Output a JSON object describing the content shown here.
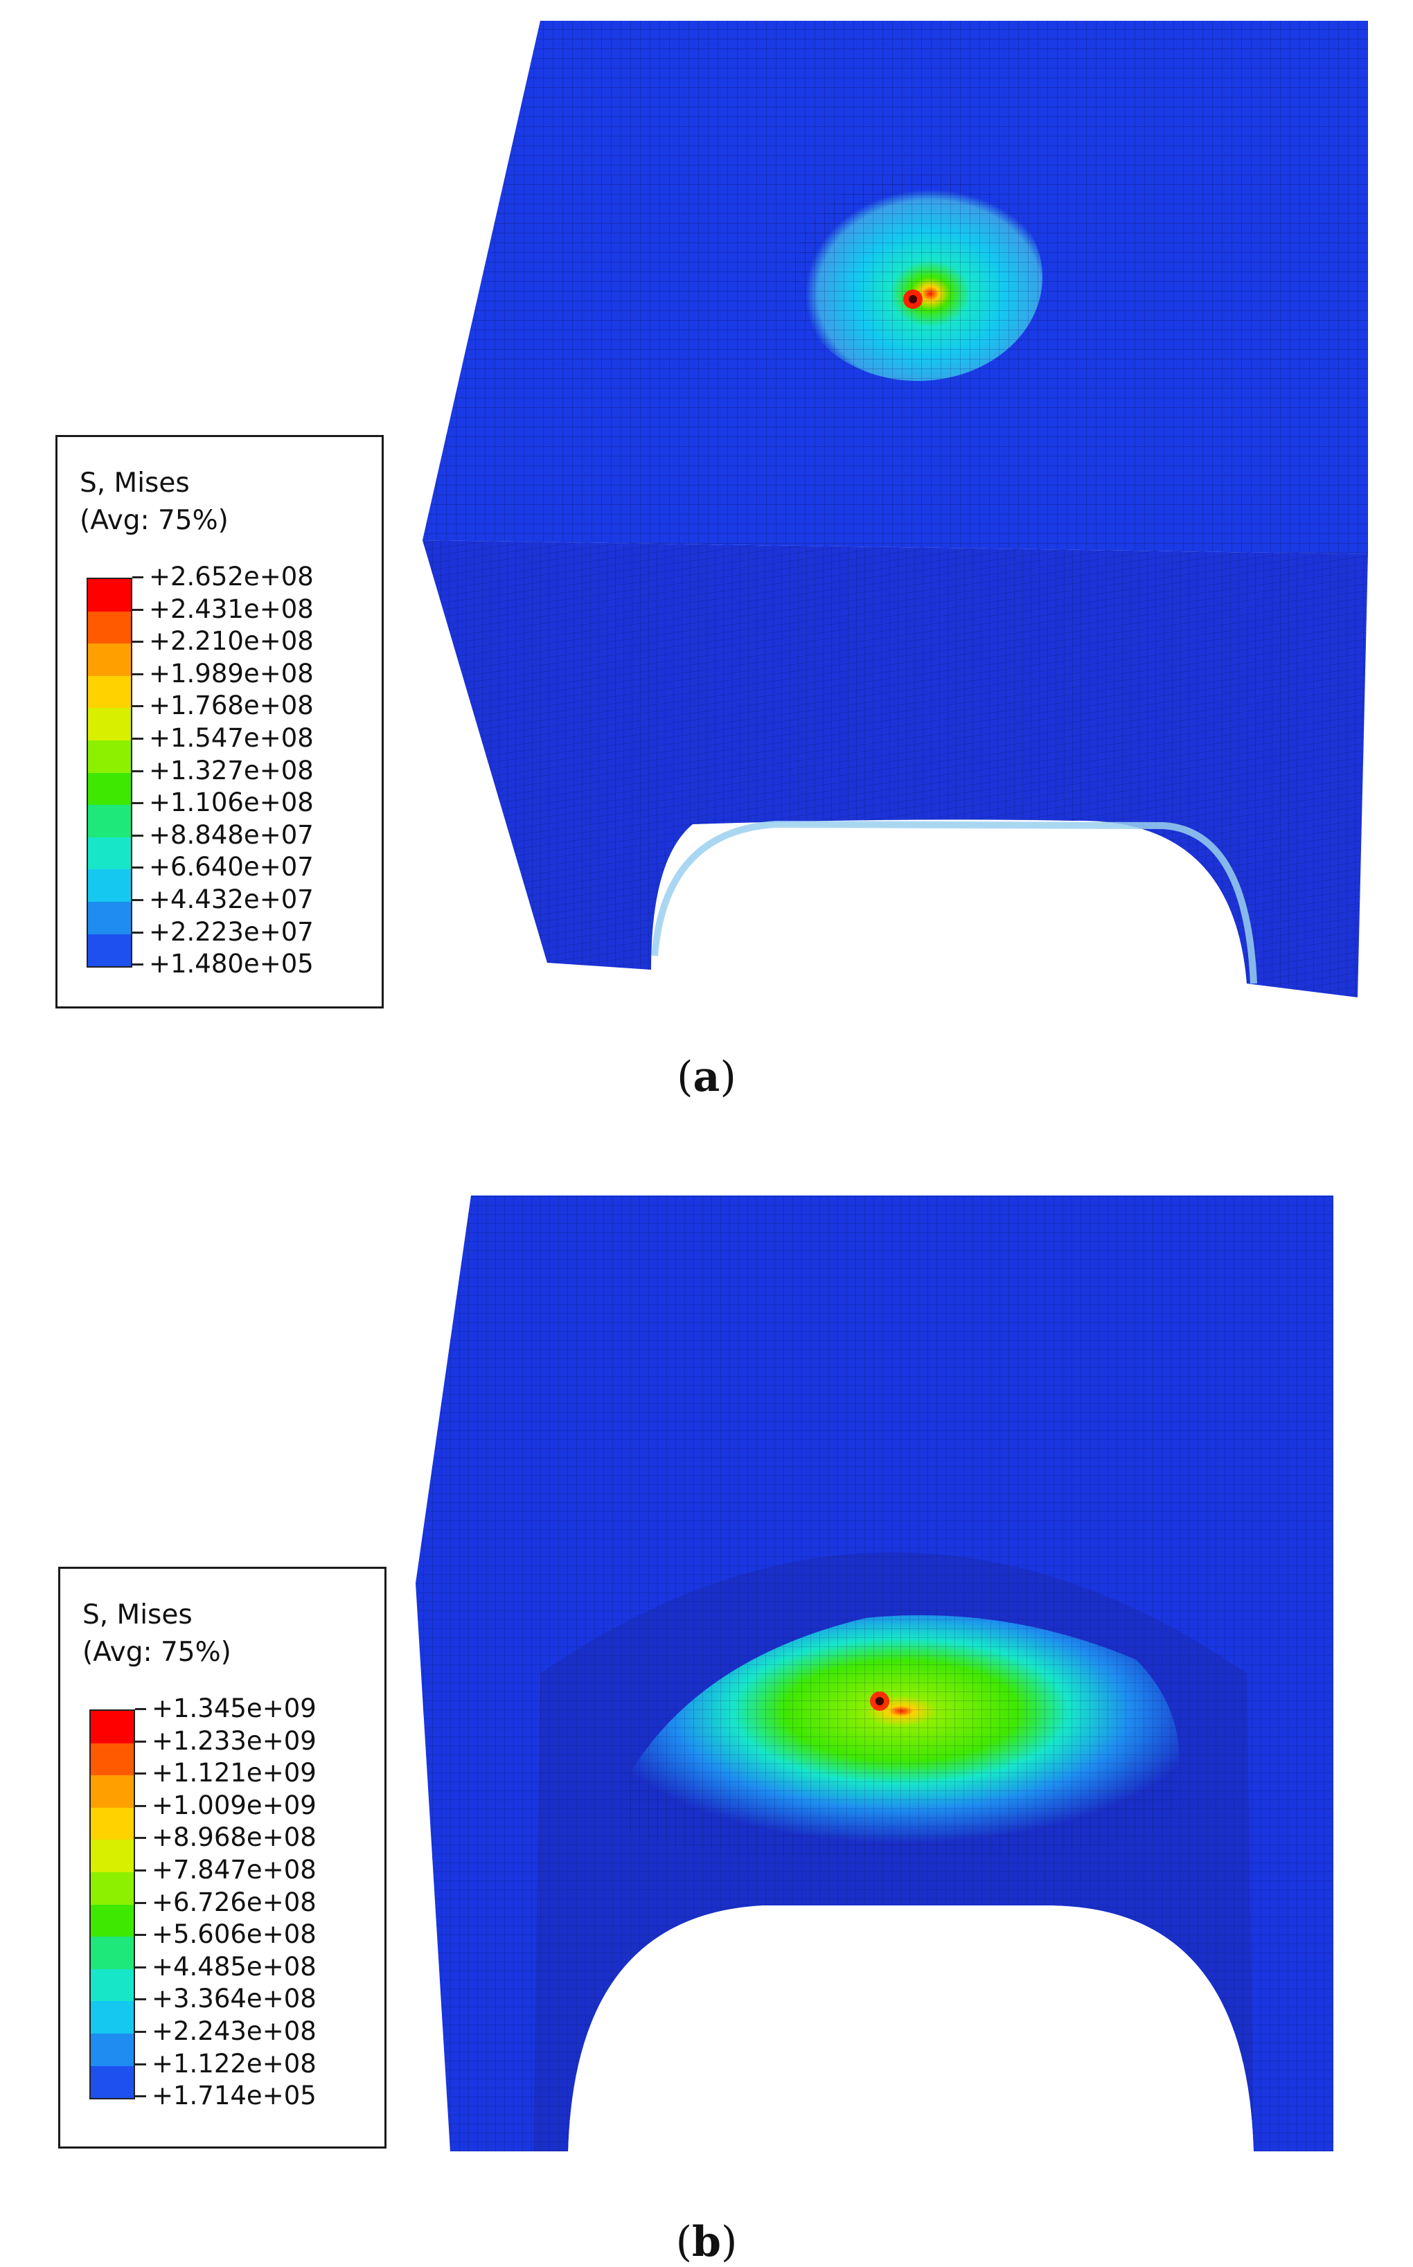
{
  "panels": [
    {
      "id": "a",
      "caption": {
        "open": "(",
        "letter": "a",
        "close": ")"
      },
      "legend": {
        "title": "S, Mises",
        "subtitle": "(Avg: 75%)",
        "values": [
          "+2.652e+08",
          "+2.431e+08",
          "+2.210e+08",
          "+1.989e+08",
          "+1.768e+08",
          "+1.547e+08",
          "+1.327e+08",
          "+1.106e+08",
          "+8.848e+07",
          "+6.640e+07",
          "+4.432e+07",
          "+2.223e+07",
          "+1.480e+05"
        ]
      }
    },
    {
      "id": "b",
      "caption": {
        "open": "(",
        "letter": "b",
        "close": ")"
      },
      "legend": {
        "title": "S, Mises",
        "subtitle": "(Avg: 75%)",
        "values": [
          "+1.345e+09",
          "+1.233e+09",
          "+1.121e+09",
          "+1.009e+09",
          "+8.968e+08",
          "+7.847e+08",
          "+6.726e+08",
          "+5.606e+08",
          "+4.485e+08",
          "+3.364e+08",
          "+2.243e+08",
          "+1.122e+08",
          "+1.714e+05"
        ]
      }
    }
  ],
  "colormap": [
    "#ff0000",
    "#ff5a00",
    "#ffa000",
    "#ffd200",
    "#d8f000",
    "#8cf000",
    "#3fe800",
    "#1ee87a",
    "#17e6c9",
    "#14c8f0",
    "#1e8cf0",
    "#1e50f0",
    "#0a14ff"
  ]
}
